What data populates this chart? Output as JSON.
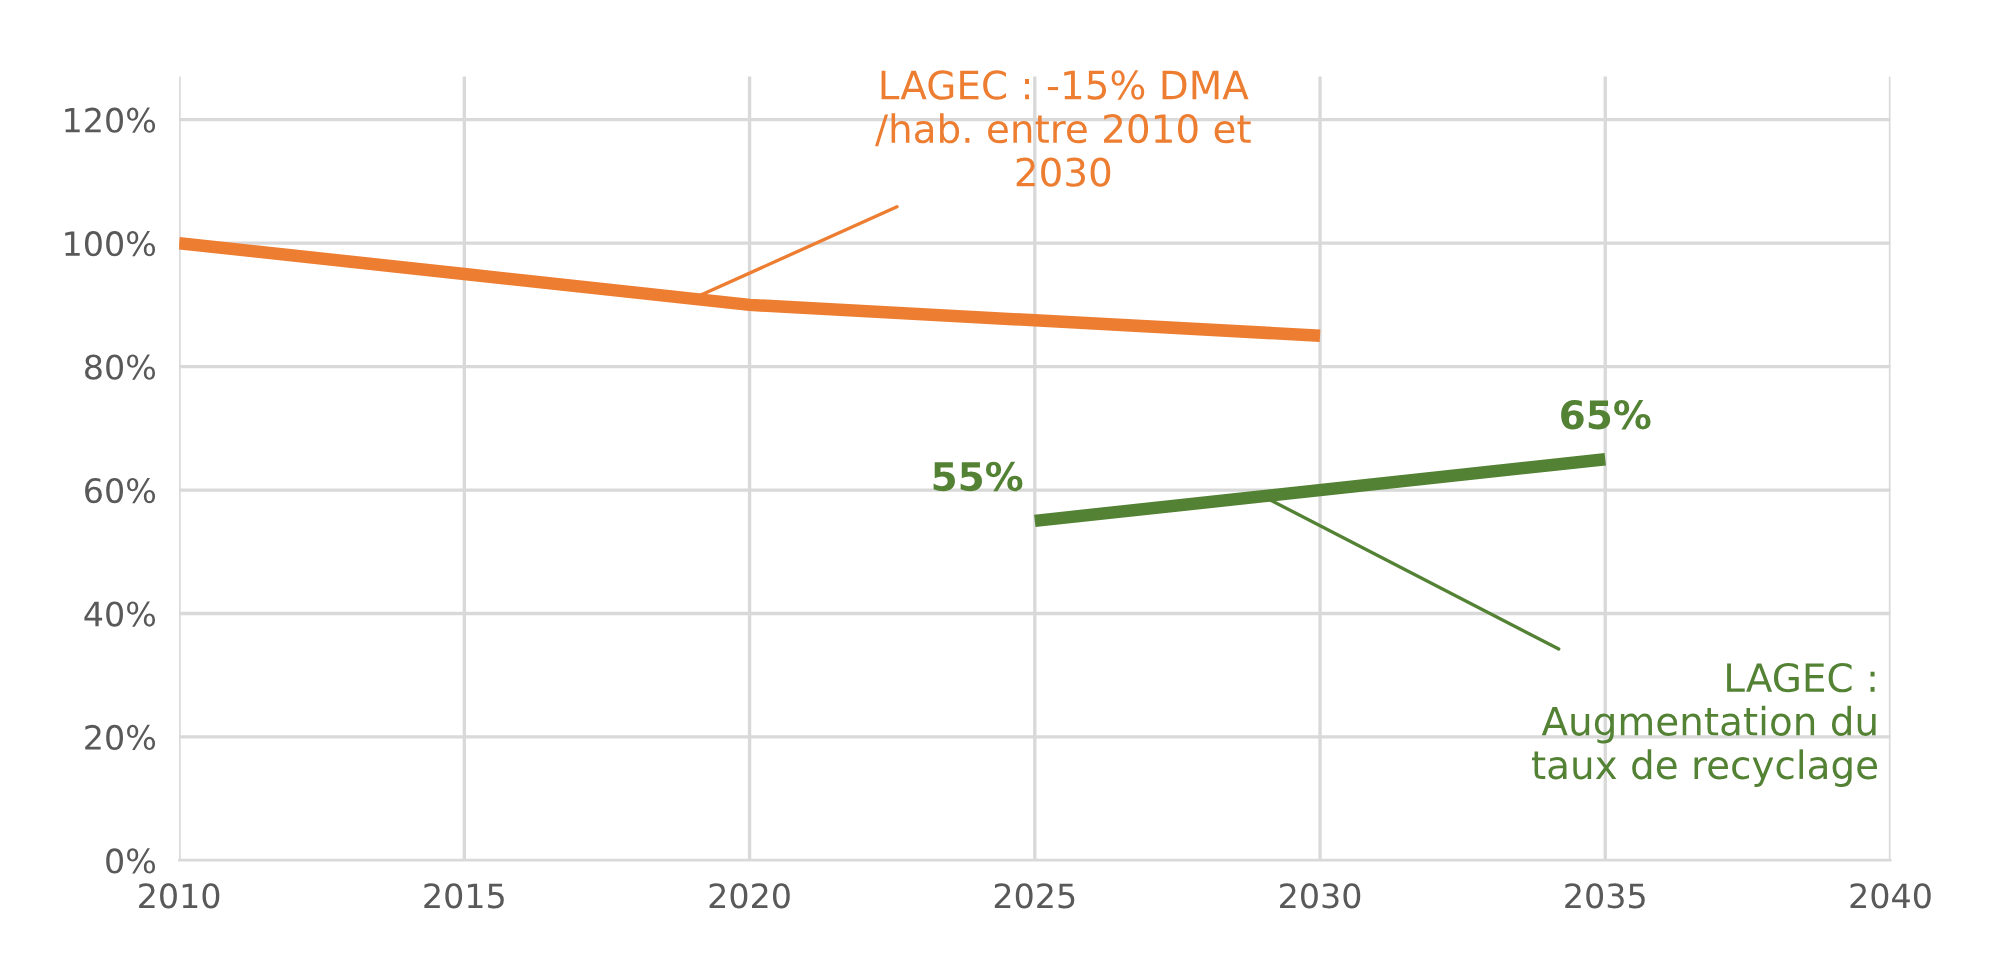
{
  "chart_data": {
    "type": "line",
    "series": [
      {
        "color": "#ed7d31",
        "x": [
          2010,
          2015,
          2020,
          2025,
          2030
        ],
        "values": [
          100,
          95,
          90,
          87.5,
          85
        ]
      },
      {
        "color": "#548235",
        "x": [
          2025,
          2035
        ],
        "values": [
          55,
          65
        ],
        "value_labels": [
          "55%",
          "65%"
        ]
      }
    ],
    "xlim": [
      2010,
      2040
    ],
    "xticks": [
      2010,
      2015,
      2020,
      2025,
      2030,
      2035,
      2040
    ],
    "ylim": [
      0,
      127
    ],
    "yticks": [
      {
        "value": 0,
        "label": "0%"
      },
      {
        "value": 20,
        "label": "20%"
      },
      {
        "value": 40,
        "label": "40%"
      },
      {
        "value": 60,
        "label": "60%"
      },
      {
        "value": 80,
        "label": "80%"
      },
      {
        "value": 100,
        "label": "100%"
      },
      {
        "value": 120,
        "label": "120%"
      }
    ],
    "grid": true,
    "annotations": [
      {
        "text": "LAGEC : -15% DMA\n/hab. entre 2010 et\n2030",
        "x": 2019,
        "y": 91
      },
      {
        "text": "LAGEC :\nAugmentation du\ntaux de recyclage",
        "x": 2029,
        "y": 59
      }
    ]
  }
}
